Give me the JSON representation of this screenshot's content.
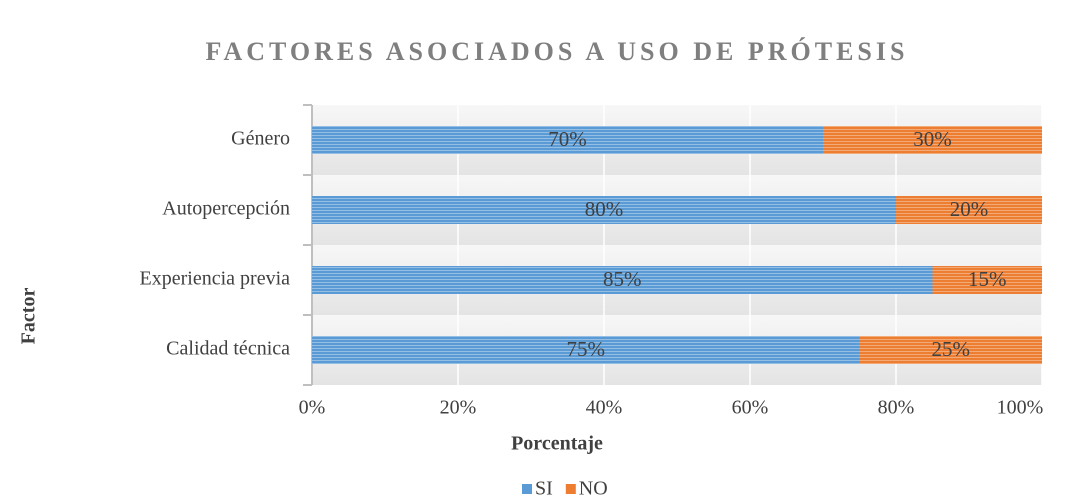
{
  "chart_data": {
    "type": "stacked-barh",
    "title": "FACTORES ASOCIADOS A USO DE PRÓTESIS",
    "x_label": "Porcentaje",
    "y_label": "Factor",
    "categories": [
      "Género",
      "Autopercepción",
      "Experiencia previa",
      "Calidad técnica"
    ],
    "series": [
      {
        "name": "SI",
        "color": "#5b9bd5",
        "values": [
          70,
          80,
          85,
          75
        ],
        "value_labels": [
          "70%",
          "80%",
          "85%",
          "75%"
        ]
      },
      {
        "name": "NO",
        "color": "#ed7d31",
        "values": [
          30,
          20,
          15,
          25
        ],
        "value_labels": [
          "30%",
          "20%",
          "15%",
          "25%"
        ]
      }
    ],
    "xlim": [
      0,
      100
    ],
    "xticks": [
      {
        "value": 0,
        "label": "0%"
      },
      {
        "value": 20,
        "label": "20%"
      },
      {
        "value": 40,
        "label": "40%"
      },
      {
        "value": 60,
        "label": "60%"
      },
      {
        "value": 80,
        "label": "80%"
      },
      {
        "value": 100,
        "label": "100%"
      }
    ],
    "grid": true,
    "legend": "bottom"
  }
}
